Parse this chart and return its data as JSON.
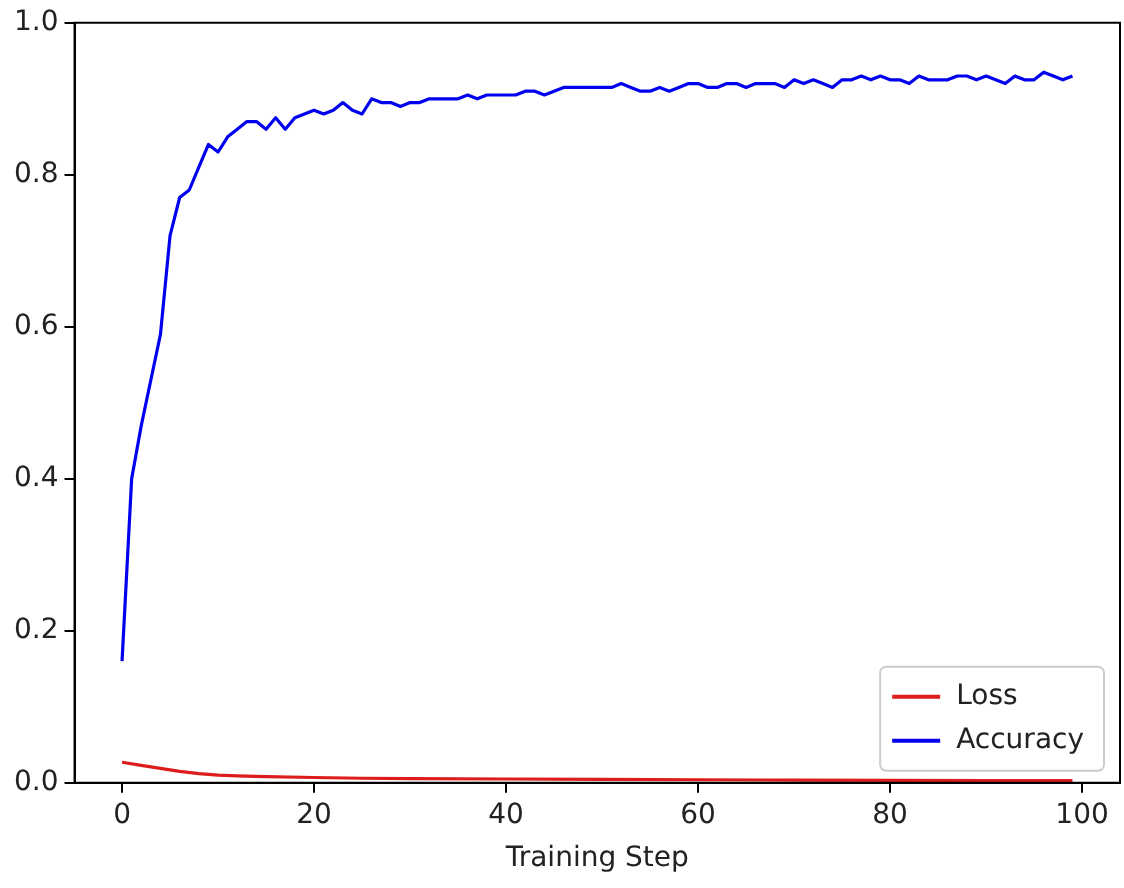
{
  "chart_data": {
    "type": "line",
    "xlabel": "Training Step",
    "xlim": [
      -4.95,
      103.95
    ],
    "ylim": [
      0,
      1
    ],
    "xticks": [
      0,
      20,
      40,
      60,
      80,
      100
    ],
    "yticks": [
      {
        "value": 0,
        "label": "0.0"
      },
      {
        "value": 0.2,
        "label": "0.2"
      },
      {
        "value": 0.4,
        "label": "0.4"
      },
      {
        "value": 0.6,
        "label": "0.6"
      },
      {
        "value": 0.8,
        "label": "0.8"
      },
      {
        "value": 1,
        "label": "1.0"
      }
    ],
    "grid": false,
    "legend": "bottom right",
    "marker": "none",
    "line_style": "solid",
    "series": [
      {
        "name": "Loss",
        "color": "#dd1c1c",
        "x": [
          0,
          2,
          4,
          6,
          8,
          10,
          12,
          15,
          20,
          25,
          30,
          40,
          50,
          60,
          70,
          80,
          90,
          99
        ],
        "values": [
          0.027,
          0.023,
          0.019,
          0.015,
          0.012,
          0.01,
          0.009,
          0.008,
          0.007,
          0.006,
          0.0055,
          0.005,
          0.0045,
          0.004,
          0.0035,
          0.0033,
          0.003,
          0.003
        ]
      },
      {
        "name": "Accuracy",
        "color": "#0000ee",
        "x": [
          0,
          1,
          2,
          3,
          4,
          5,
          6,
          7,
          8,
          9,
          10,
          11,
          12,
          13,
          14,
          15,
          16,
          17,
          18,
          19,
          20,
          21,
          22,
          23,
          24,
          25,
          26,
          27,
          28,
          29,
          30,
          31,
          32,
          33,
          34,
          35,
          36,
          37,
          38,
          39,
          40,
          41,
          42,
          43,
          44,
          45,
          46,
          47,
          48,
          49,
          50,
          51,
          52,
          53,
          54,
          55,
          56,
          57,
          58,
          59,
          60,
          61,
          62,
          63,
          64,
          65,
          66,
          67,
          68,
          69,
          70,
          71,
          72,
          73,
          74,
          75,
          76,
          77,
          78,
          79,
          80,
          81,
          82,
          83,
          84,
          85,
          86,
          87,
          88,
          89,
          90,
          91,
          92,
          93,
          94,
          95,
          96,
          97,
          98,
          99
        ],
        "values": [
          0.16,
          0.4,
          0.47,
          0.53,
          0.59,
          0.72,
          0.77,
          0.78,
          0.81,
          0.84,
          0.83,
          0.85,
          0.86,
          0.87,
          0.87,
          0.86,
          0.875,
          0.86,
          0.875,
          0.88,
          0.885,
          0.88,
          0.885,
          0.895,
          0.885,
          0.88,
          0.9,
          0.895,
          0.895,
          0.89,
          0.895,
          0.895,
          0.9,
          0.9,
          0.9,
          0.9,
          0.905,
          0.9,
          0.905,
          0.905,
          0.905,
          0.905,
          0.91,
          0.91,
          0.905,
          0.91,
          0.915,
          0.915,
          0.915,
          0.915,
          0.915,
          0.915,
          0.92,
          0.915,
          0.91,
          0.91,
          0.915,
          0.91,
          0.915,
          0.92,
          0.92,
          0.915,
          0.915,
          0.92,
          0.92,
          0.915,
          0.92,
          0.92,
          0.92,
          0.915,
          0.925,
          0.92,
          0.925,
          0.92,
          0.915,
          0.925,
          0.925,
          0.93,
          0.925,
          0.93,
          0.925,
          0.925,
          0.92,
          0.93,
          0.925,
          0.925,
          0.925,
          0.93,
          0.93,
          0.925,
          0.93,
          0.925,
          0.92,
          0.93,
          0.925,
          0.925,
          0.935,
          0.93,
          0.925,
          0.93
        ]
      }
    ]
  }
}
